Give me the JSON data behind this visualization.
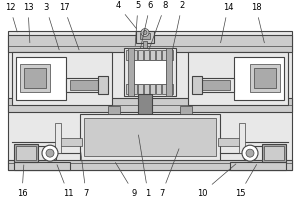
{
  "line_color": "#444444",
  "gray1": "#e8e8e8",
  "gray2": "#cccccc",
  "gray3": "#aaaaaa",
  "gray4": "#888888",
  "gray5": "#666666",
  "white": "#ffffff",
  "lw_main": 0.8,
  "lw_thin": 0.5,
  "fs": 6.0
}
